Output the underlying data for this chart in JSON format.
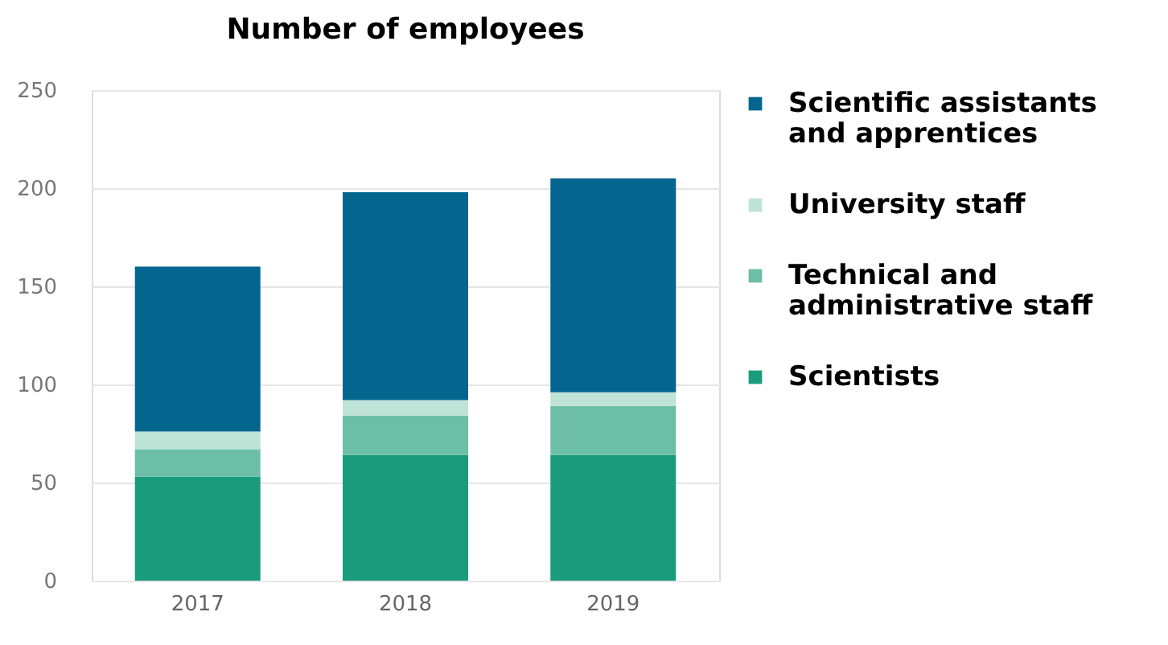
{
  "chart_data": {
    "type": "bar",
    "title": "Number of employees",
    "stacked": true,
    "categories": [
      "2017",
      "2018",
      "2019"
    ],
    "series": [
      {
        "name": "Scientists",
        "color": "#1a9c7c",
        "values": [
          53,
          64,
          64
        ]
      },
      {
        "name": "Technical and administrative staff",
        "color": "#6cbfa6",
        "values": [
          14,
          20,
          25
        ]
      },
      {
        "name": "University staff",
        "color": "#bfe3d6",
        "values": [
          9,
          8,
          7
        ]
      },
      {
        "name": "Scientific assistants and apprentices",
        "color": "#04668f",
        "values": [
          84,
          106,
          109
        ]
      }
    ],
    "ylim": [
      0,
      250
    ],
    "yticks": [
      0,
      50,
      100,
      150,
      200,
      250
    ],
    "grid": "y",
    "legend": "right"
  }
}
